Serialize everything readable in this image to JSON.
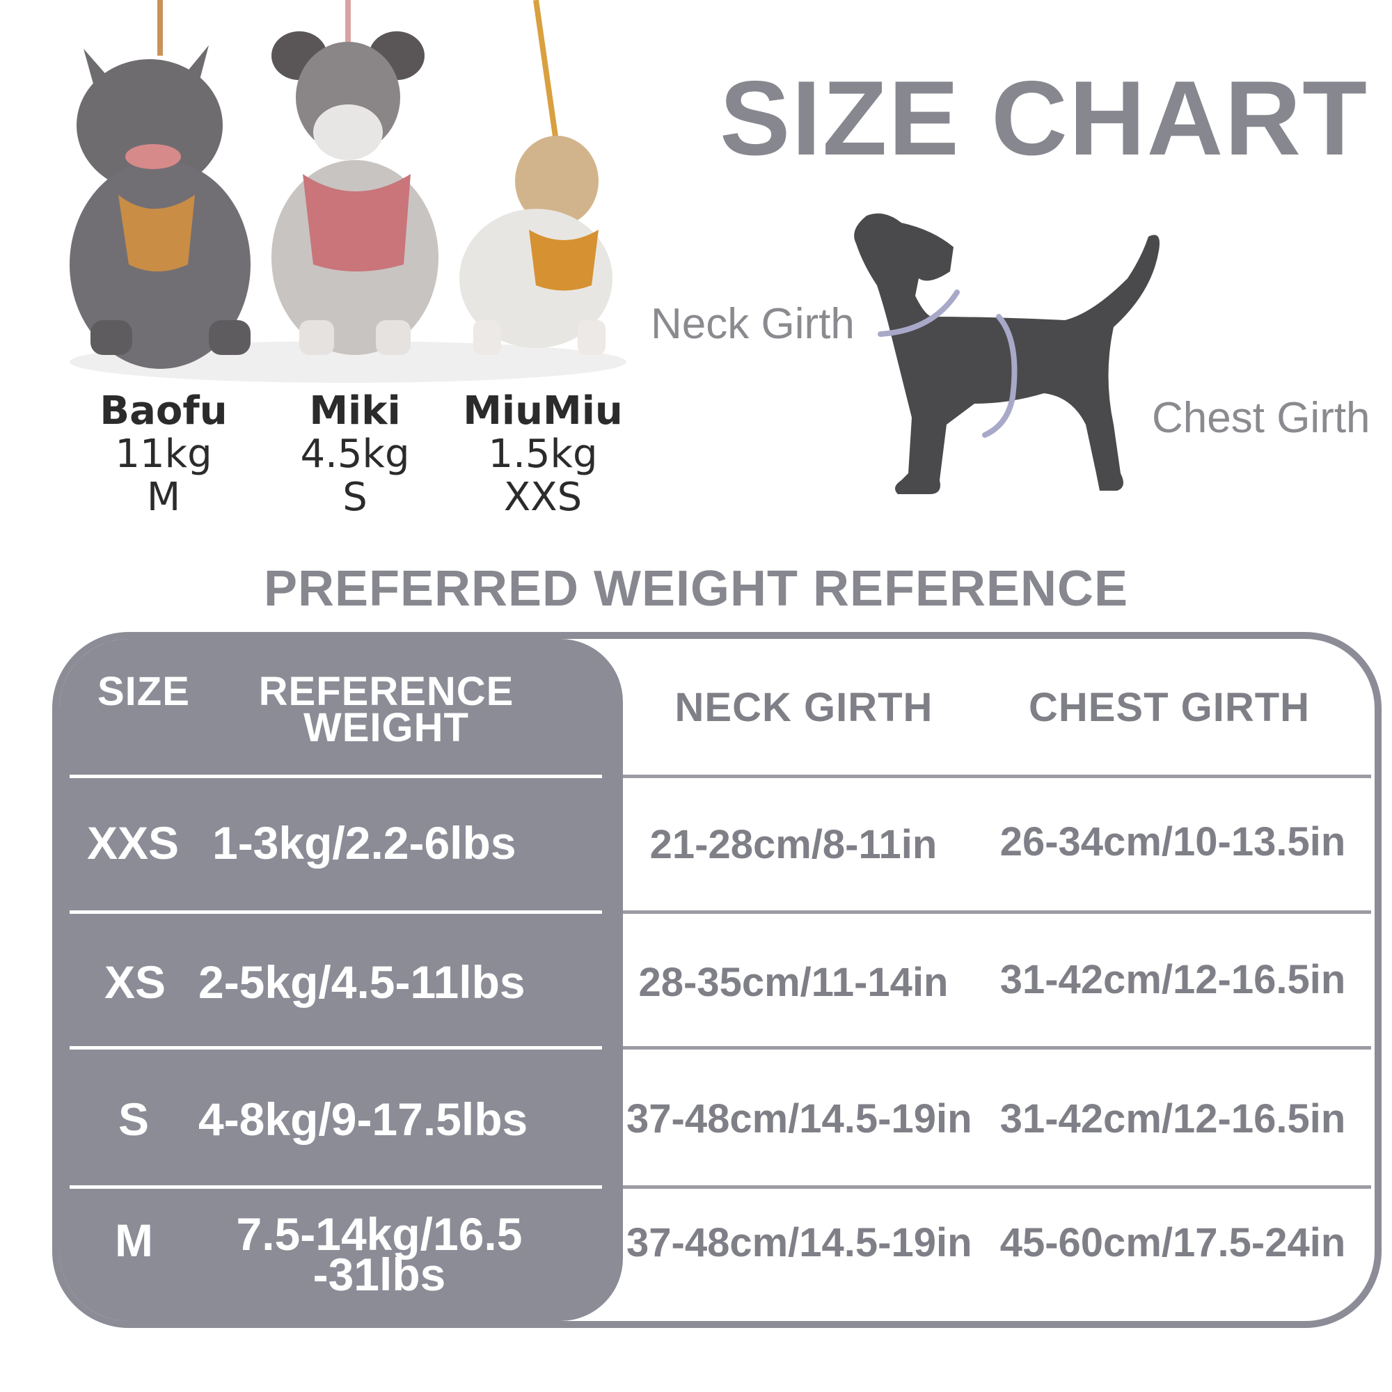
{
  "title": "SIZE CHART",
  "diagram": {
    "neck_label": "Neck Girth",
    "chest_label": "Chest Girth",
    "neck_color": "#a8a9c8",
    "dog_color": "#4a4a4c"
  },
  "dogs": [
    {
      "name": "Baofu",
      "weight": "11kg",
      "size": "M"
    },
    {
      "name": "Miki",
      "weight": "4.5kg",
      "size": "S"
    },
    {
      "name": "MiuMiu",
      "weight": "1.5kg",
      "size": "XXS"
    }
  ],
  "subtitle": "PREFERRED WEIGHT REFERENCE",
  "table": {
    "headers": {
      "size": "SIZE",
      "weight_line1": "REFERENCE",
      "weight_line2": "WEIGHT",
      "neck": "NECK GIRTH",
      "chest": "CHEST GIRTH"
    },
    "rows": [
      {
        "size": "XXS",
        "weight": "1-3kg/2.2-6lbs",
        "weight2": "",
        "neck": "21-28cm/8-11in",
        "chest": "26-34cm/10-13.5in"
      },
      {
        "size": "XS",
        "weight": "2-5kg/4.5-11lbs",
        "weight2": "",
        "neck": "28-35cm/11-14in",
        "chest": "31-42cm/12-16.5in"
      },
      {
        "size": "S",
        "weight": "4-8kg/9-17.5lbs",
        "weight2": "",
        "neck": "37-48cm/14.5-19in",
        "chest": "31-42cm/12-16.5in"
      },
      {
        "size": "M",
        "weight": "7.5-14kg/16.5",
        "weight2": "-31lbs",
        "neck": "37-48cm/14.5-19in",
        "chest": "45-60cm/17.5-24in"
      }
    ],
    "panel_color": "#8b8c96",
    "text_gray": "#7f7f87"
  }
}
